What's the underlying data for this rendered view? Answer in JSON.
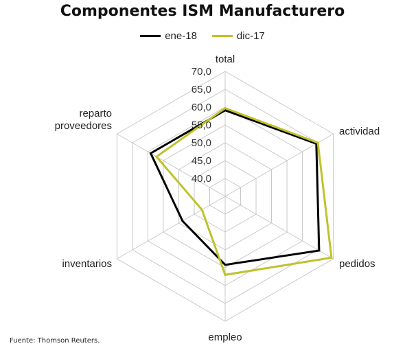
{
  "chart_data": {
    "type": "radar",
    "title": "Componentes  ISM Manufacturero",
    "categories": [
      "total",
      "actividad",
      "pedidos",
      "empleo",
      "inventarios",
      "reparto proveedores"
    ],
    "category_lines": [
      [
        "total"
      ],
      [
        "actividad"
      ],
      [
        "pedidos"
      ],
      [
        "empleo"
      ],
      [
        "inventarios"
      ],
      [
        "reparto",
        "proveedores"
      ]
    ],
    "series": [
      {
        "name": "ene-18",
        "color": "#000000",
        "values": [
          59.1,
          64.5,
          65.4,
          54.2,
          48.8,
          59.1
        ]
      },
      {
        "name": "dic-17",
        "color": "#bfc22b",
        "values": [
          59.7,
          65.0,
          69.4,
          57.0,
          42.5,
          57.2
        ]
      }
    ],
    "r_axis": {
      "min": 40.0,
      "max": 70.0,
      "step": 5.0,
      "min_ring_value": 35.0
    },
    "tick_labels": [
      "40,0",
      "45,0",
      "50,0",
      "55,0",
      "60,0",
      "65,0",
      "70,0"
    ],
    "grid": true,
    "legend_position": "top"
  },
  "source": "Fuente: Thomson Reuters."
}
